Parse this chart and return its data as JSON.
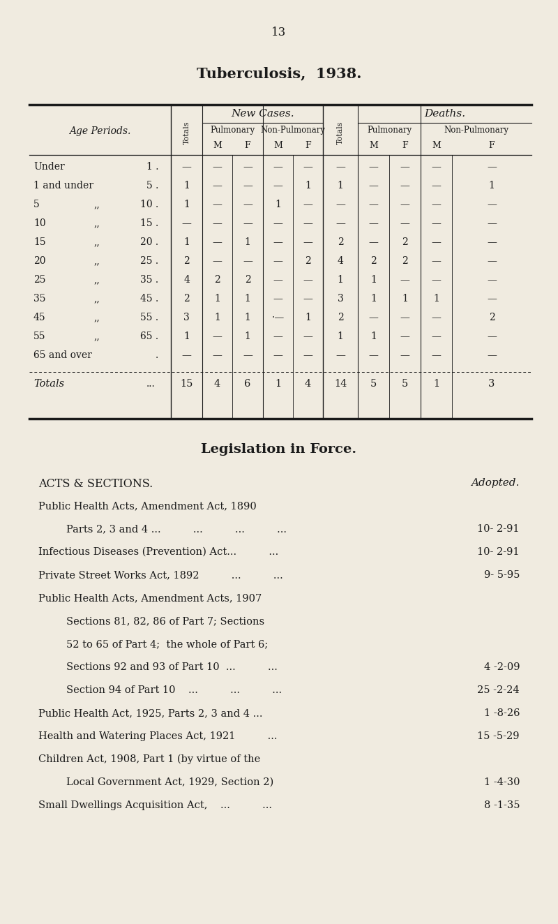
{
  "page_number": "13",
  "title": "Tuberculosis,  1938.",
  "bg_color": "#f0ebe0",
  "text_color": "#1a1a1a",
  "table": {
    "rows": [
      [
        "Under",
        "1",
        "—",
        "—",
        "—",
        "—",
        "—",
        "—",
        "—",
        "—",
        "—",
        "—"
      ],
      [
        "1 and under",
        "5",
        "1",
        "—",
        "—",
        "—",
        "1",
        "1",
        "—",
        "—",
        "—",
        "1"
      ],
      [
        "5",
        "10",
        "1",
        "—",
        "—",
        "1",
        "—",
        "—",
        "—",
        "—",
        "—",
        "—"
      ],
      [
        "10",
        "15",
        "—",
        "—",
        "—",
        "—",
        "—",
        "—",
        "—",
        "—",
        "—",
        "—"
      ],
      [
        "15",
        "20",
        "1",
        "—",
        "1",
        "—",
        "—",
        "2",
        "—",
        "2",
        "—",
        "—"
      ],
      [
        "20",
        "25",
        "2",
        "—",
        "—",
        "—",
        "2",
        "4",
        "2",
        "2",
        "—",
        "—"
      ],
      [
        "25",
        "35",
        "4",
        "2",
        "2",
        "—",
        "—",
        "1",
        "1",
        "—",
        "—",
        "—"
      ],
      [
        "35",
        "45",
        "2",
        "1",
        "1",
        "—",
        "—",
        "3",
        "1",
        "1",
        "1",
        "—"
      ],
      [
        "45",
        "55",
        "3",
        "1",
        "1",
        "·—",
        "1",
        "2",
        "—",
        "—",
        "—",
        "2"
      ],
      [
        "55",
        "65",
        "1",
        "—",
        "1",
        "—",
        "—",
        "1",
        "1",
        "—",
        "—",
        "—"
      ],
      [
        "65 and over",
        "",
        "—",
        "—",
        "—",
        "—",
        "—",
        "—",
        "—",
        "—",
        "—",
        "—"
      ]
    ],
    "totals_row": [
      "15",
      "4",
      "6",
      "1",
      "4",
      "14",
      "5",
      "5",
      "1",
      "3"
    ]
  },
  "legislation_title": "Legislation in Force.",
  "acts_header_left": "ACTS & SECTIONS.",
  "acts_header_right": "Adopted.",
  "acts": [
    {
      "text": "Public Health Acts, Amendment Act, 1890",
      "indent": 0,
      "date": ""
    },
    {
      "text": "Parts 2, 3 and 4 ...          ...          ...          ...",
      "indent": 1,
      "date": "10- 2-91"
    },
    {
      "text": "Infectious Diseases (Prevention) Act...          ...",
      "indent": 0,
      "date": "10- 2-91"
    },
    {
      "text": "Private Street Works Act, 1892          ...          ...",
      "indent": 0,
      "date": "9- 5-95"
    },
    {
      "text": "Public Health Acts, Amendment Acts, 1907",
      "indent": 0,
      "date": ""
    },
    {
      "text": "Sections 81, 82, 86 of Part 7; Sections",
      "indent": 1,
      "date": ""
    },
    {
      "text": "52 to 65 of Part 4;  the whole of Part 6;",
      "indent": 1,
      "date": ""
    },
    {
      "text": "Sections 92 and 93 of Part 10  ...          ...",
      "indent": 1,
      "date": "4 -2-09"
    },
    {
      "text": "Section 94 of Part 10    ...          ...          ...",
      "indent": 1,
      "date": "25 -2-24"
    },
    {
      "text": "Public Health Act, 1925, Parts 2, 3 and 4 ...",
      "indent": 0,
      "date": "1 -8-26"
    },
    {
      "text": "Health and Watering Places Act, 1921          ...",
      "indent": 0,
      "date": "15 -5-29"
    },
    {
      "text": "Children Act, 1908, Part 1 (by virtue of the",
      "indent": 0,
      "date": ""
    },
    {
      "text": "Local Government Act, 1929, Section 2)",
      "indent": 1,
      "date": "1 -4-30"
    },
    {
      "text": "Small Dwellings Acquisition Act,    ...          ...",
      "indent": 0,
      "date": "8 -1-35"
    }
  ]
}
